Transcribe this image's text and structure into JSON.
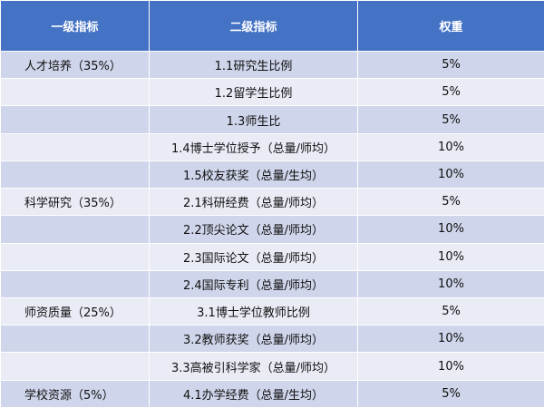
{
  "header": {
    "col1": "一级指标",
    "col2": "二级指标",
    "col3": "权重"
  },
  "rows": [
    {
      "level1": "人才培养（35%）",
      "level2": "1.1研究生比例",
      "weight": "5%"
    },
    {
      "level1": "",
      "level2": "1.2留学生比例",
      "weight": "5%"
    },
    {
      "level1": "",
      "level2": "1.3师生比",
      "weight": "5%"
    },
    {
      "level1": "",
      "level2": "1.4博士学位授予（总量/师均）",
      "weight": "10%"
    },
    {
      "level1": "",
      "level2": "1.5校友获奖（总量/生均）",
      "weight": "10%"
    },
    {
      "level1": "科学研究（35%）",
      "level2": "2.1科研经费（总量/师均）",
      "weight": "5%"
    },
    {
      "level1": "",
      "level2": "2.2顶尖论文（总量/师均）",
      "weight": "10%"
    },
    {
      "level1": "",
      "level2": "2.3国际论文（总量/师均）",
      "weight": "10%"
    },
    {
      "level1": "",
      "level2": "2.4国际专利（总量/师均）",
      "weight": "10%"
    },
    {
      "level1": "师资质量（25%）",
      "level2": "3.1博士学位教师比例",
      "weight": "5%"
    },
    {
      "level1": "",
      "level2": "3.2教师获奖（总量/师均）",
      "weight": "10%"
    },
    {
      "level1": "",
      "level2": "3.3高被引科学家（总量/师均）",
      "weight": "10%"
    },
    {
      "level1": "学校资源（5%）",
      "level2": "4.1办学经费（总量/生均）",
      "weight": "5%"
    }
  ]
}
